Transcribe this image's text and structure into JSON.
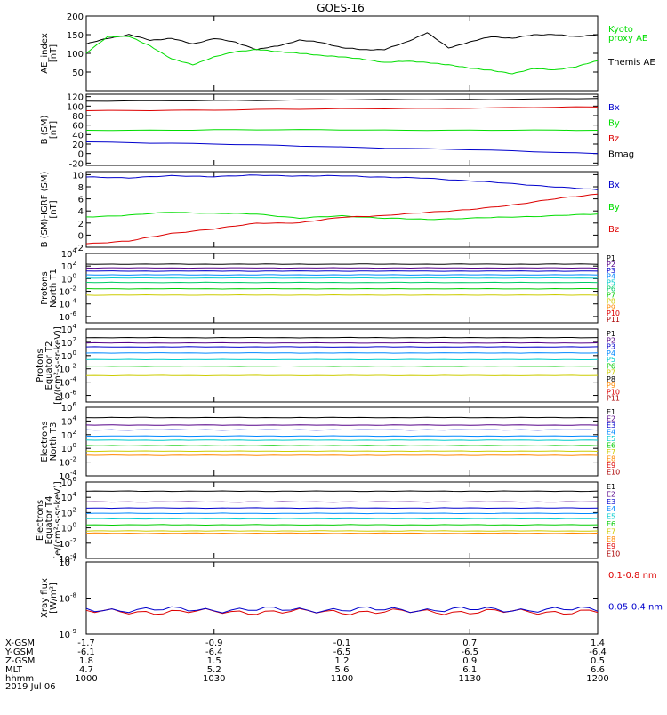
{
  "figure": {
    "title": "GOES-16",
    "date_label": "2019 Jul 06"
  },
  "x_axis": {
    "time_start": "1000",
    "time_end": "1200",
    "tick_times": [
      "1000",
      "1030",
      "1100",
      "1130",
      "1200"
    ],
    "ephemeris_rows": [
      {
        "label": "X-GSM",
        "values": [
          "-1.7",
          "-0.9",
          "-0.1",
          "0.7",
          "1.4"
        ]
      },
      {
        "label": "Y-GSM",
        "values": [
          "-6.1",
          "-6.4",
          "-6.5",
          "-6.5",
          "-6.4"
        ]
      },
      {
        "label": "Z-GSM",
        "values": [
          "1.8",
          "1.5",
          "1.2",
          "0.9",
          "0.5"
        ]
      },
      {
        "label": "MLT",
        "values": [
          "4.7",
          "5.2",
          "5.6",
          "6.1",
          "6.6"
        ]
      },
      {
        "label": "hhmm",
        "values": [
          "1000",
          "1030",
          "1100",
          "1130",
          "1200"
        ]
      }
    ]
  },
  "chart_data": [
    {
      "type": "line",
      "panel": "ae_index",
      "ylabel": "AE_index\n[nT]",
      "ylim": [
        0,
        200
      ],
      "yticks": [
        "50",
        "100",
        "150",
        "200"
      ],
      "legend": [
        "Kyoto\nproxy AE",
        "Themis AE"
      ],
      "series": [
        {
          "name": "Themis AE",
          "color": "#000000",
          "x": [
            0,
            5,
            10,
            15,
            20,
            25,
            30,
            35,
            40,
            45,
            50,
            55,
            60,
            65,
            70,
            75,
            80,
            85,
            90,
            95,
            100,
            105,
            110,
            115,
            120
          ],
          "y": [
            125,
            140,
            150,
            135,
            140,
            125,
            140,
            130,
            110,
            120,
            135,
            130,
            115,
            110,
            110,
            130,
            155,
            115,
            130,
            145,
            140,
            150,
            150,
            145,
            150
          ]
        },
        {
          "name": "Kyoto proxy AE",
          "color": "#00dd00",
          "x": [
            0,
            5,
            10,
            15,
            20,
            25,
            30,
            35,
            40,
            45,
            50,
            55,
            60,
            65,
            70,
            75,
            80,
            85,
            90,
            95,
            100,
            105,
            110,
            115,
            120
          ],
          "y": [
            100,
            145,
            145,
            120,
            85,
            70,
            90,
            105,
            110,
            105,
            100,
            95,
            90,
            85,
            75,
            80,
            75,
            70,
            60,
            55,
            45,
            60,
            55,
            65,
            80
          ]
        }
      ]
    },
    {
      "type": "line",
      "panel": "b_sm",
      "ylabel": "B (SM)\n[nT]",
      "ylim": [
        -25,
        125
      ],
      "yticks": [
        "-20",
        "0",
        "20",
        "40",
        "60",
        "80",
        "100",
        "120"
      ],
      "legend": [
        "Bx",
        "By",
        "Bz",
        "Bmag"
      ],
      "series": [
        {
          "name": "Bmag",
          "color": "#000000",
          "x": [
            0,
            30,
            60,
            90,
            120
          ],
          "y": [
            110,
            112,
            113,
            114,
            116
          ]
        },
        {
          "name": "Bz",
          "color": "#dd0000",
          "x": [
            0,
            30,
            60,
            90,
            120
          ],
          "y": [
            90,
            92,
            94,
            96,
            98
          ]
        },
        {
          "name": "By",
          "color": "#00dd00",
          "x": [
            0,
            30,
            60,
            90,
            120
          ],
          "y": [
            49,
            50,
            50,
            49,
            49
          ]
        },
        {
          "name": "Bx",
          "color": "#0000cc",
          "x": [
            0,
            30,
            60,
            90,
            120
          ],
          "y": [
            25,
            20,
            14,
            8,
            0
          ]
        }
      ]
    },
    {
      "type": "line",
      "panel": "b_sm_minus_igrf",
      "ylabel": "B (SM)-IGRF (SM)\n[nT]",
      "ylim": [
        -2,
        10.5
      ],
      "yticks": [
        "-2",
        "0",
        "2",
        "4",
        "6",
        "8",
        "10"
      ],
      "legend": [
        "Bx",
        "By",
        "Bz"
      ],
      "series": [
        {
          "name": "Bx",
          "color": "#0000cc",
          "x": [
            0,
            10,
            20,
            30,
            40,
            50,
            60,
            70,
            80,
            90,
            100,
            110,
            120
          ],
          "y": [
            9.6,
            9.5,
            9.8,
            9.7,
            9.9,
            9.8,
            9.8,
            9.6,
            9.4,
            9.0,
            8.5,
            8.0,
            7.5
          ]
        },
        {
          "name": "By",
          "color": "#00dd00",
          "x": [
            0,
            10,
            20,
            30,
            40,
            50,
            60,
            70,
            80,
            90,
            100,
            110,
            120
          ],
          "y": [
            3.0,
            3.3,
            3.8,
            3.6,
            3.5,
            2.8,
            3.2,
            2.8,
            2.6,
            2.8,
            3.0,
            3.2,
            3.5
          ]
        },
        {
          "name": "Bz",
          "color": "#dd0000",
          "x": [
            0,
            10,
            20,
            30,
            40,
            50,
            60,
            70,
            80,
            90,
            100,
            110,
            120
          ],
          "y": [
            -1.4,
            -1.0,
            0.3,
            1.0,
            2.0,
            2.0,
            3.0,
            3.2,
            3.8,
            4.2,
            5.0,
            6.0,
            6.8
          ]
        }
      ]
    },
    {
      "type": "line",
      "panel": "protons_north",
      "ylabel": "Protons\nNorth T1",
      "log_scale": true,
      "ylim_exp": [
        -7,
        4
      ],
      "yticks": [
        "10^4",
        "10^2",
        "10^0",
        "10^-2",
        "10^-4",
        "10^-6"
      ],
      "legend": [
        "P1",
        "P2",
        "P3",
        "P4",
        "P5",
        "P6",
        "P7",
        "P8",
        "P9",
        "P10",
        "P11"
      ],
      "series": [
        {
          "name": "P1",
          "color": "#000000",
          "log_level": 2.3
        },
        {
          "name": "P2",
          "color": "#550088",
          "log_level": 1.7
        },
        {
          "name": "P3",
          "color": "#0000cc",
          "log_level": 1.2
        },
        {
          "name": "P4",
          "color": "#0088ff",
          "log_level": 0.6
        },
        {
          "name": "P5",
          "color": "#00cccc",
          "log_level": 0.1
        },
        {
          "name": "P6",
          "color": "#00cc66",
          "log_level": -0.6
        },
        {
          "name": "P7",
          "color": "#00cc00",
          "log_level": -1.6
        },
        {
          "name": "P8",
          "color": "#cccc00",
          "log_level": -2.6
        }
      ]
    },
    {
      "type": "line",
      "panel": "protons_equator",
      "ylabel": "Protons\nEquator T2\n[p/(cm²-s-sr-keV)]",
      "log_scale": true,
      "ylim_exp": [
        -7,
        4
      ],
      "yticks": [
        "10^4",
        "10^2",
        "10^0",
        "10^-2",
        "10^-4",
        "10^-6"
      ],
      "legend": [
        "P1",
        "P2",
        "P3",
        "P4",
        "P5",
        "P6",
        "P7",
        "P8",
        "P9",
        "P10",
        "P11"
      ],
      "series": [
        {
          "name": "P1",
          "color": "#000000",
          "log_level": 2.7
        },
        {
          "name": "P2",
          "color": "#550088",
          "log_level": 1.9
        },
        {
          "name": "P3",
          "color": "#0000cc",
          "log_level": 1.3
        },
        {
          "name": "P4",
          "color": "#0088ff",
          "log_level": 0.4
        },
        {
          "name": "P5",
          "color": "#00cccc",
          "log_level": -0.6
        },
        {
          "name": "P6",
          "color": "#00cc00",
          "log_level": -1.6
        },
        {
          "name": "P7",
          "color": "#cccc00",
          "log_level": -3.0
        }
      ]
    },
    {
      "type": "line",
      "panel": "electrons_north",
      "ylabel": "Electrons\nNorth T3",
      "log_scale": true,
      "ylim_exp": [
        -4,
        6
      ],
      "yticks": [
        "10^6",
        "10^4",
        "10^2",
        "10^0",
        "10^-2",
        "10^-4"
      ],
      "legend": [
        "E1",
        "E2",
        "E3",
        "E4",
        "E5",
        "E6",
        "E7",
        "E8",
        "E9",
        "E10"
      ],
      "series": [
        {
          "name": "E1",
          "color": "#000000",
          "log_level": 4.5
        },
        {
          "name": "E2",
          "color": "#550088",
          "log_level": 3.4
        },
        {
          "name": "E3",
          "color": "#0000cc",
          "log_level": 2.7
        },
        {
          "name": "E4",
          "color": "#0088ff",
          "log_level": 1.8
        },
        {
          "name": "E5",
          "color": "#00cccc",
          "log_level": 1.2
        },
        {
          "name": "E6",
          "color": "#00cc00",
          "log_level": 0.4
        },
        {
          "name": "E7",
          "color": "#cccc00",
          "log_level": -0.4
        },
        {
          "name": "E8",
          "color": "#ff8800",
          "log_level": -1.0
        }
      ]
    },
    {
      "type": "line",
      "panel": "electrons_equator",
      "ylabel": "Electrons\nEquator T4\n[e/(cm²-s-sr-keV)]",
      "log_scale": true,
      "ylim_exp": [
        -4,
        6
      ],
      "yticks": [
        "10^6",
        "10^4",
        "10^2",
        "10^0",
        "10^-2",
        "10^-4"
      ],
      "legend": [
        "E1",
        "E2",
        "E3",
        "E4",
        "E5",
        "E6",
        "E7",
        "E8",
        "E9",
        "E10"
      ],
      "series": [
        {
          "name": "E1",
          "color": "#000000",
          "log_level": 4.8
        },
        {
          "name": "E2",
          "color": "#550088",
          "log_level": 3.4
        },
        {
          "name": "E3",
          "color": "#0000cc",
          "log_level": 2.6
        },
        {
          "name": "E4",
          "color": "#0088ff",
          "log_level": 1.9
        },
        {
          "name": "E5",
          "color": "#00cccc",
          "log_level": 1.2
        },
        {
          "name": "E6",
          "color": "#00cc00",
          "log_level": 0.4
        },
        {
          "name": "E7",
          "color": "#cccc00",
          "log_level": -0.4
        },
        {
          "name": "E8",
          "color": "#ff8800",
          "log_level": -0.7
        }
      ]
    },
    {
      "type": "line",
      "panel": "xray_flux",
      "ylabel": "Xray flux\n[W/m²]",
      "log_scale": true,
      "ylim_exp": [
        -9,
        -7
      ],
      "yticks": [
        "10^-7",
        "10^-8",
        "10^-9"
      ],
      "legend": [
        "0.1-0.8 nm",
        "0.05-0.4 nm"
      ],
      "series": [
        {
          "name": "0.1-0.8 nm",
          "color": "#dd0000",
          "log_level": -8.38
        },
        {
          "name": "0.05-0.4 nm",
          "color": "#0000cc",
          "log_level": -8.32
        }
      ]
    }
  ]
}
